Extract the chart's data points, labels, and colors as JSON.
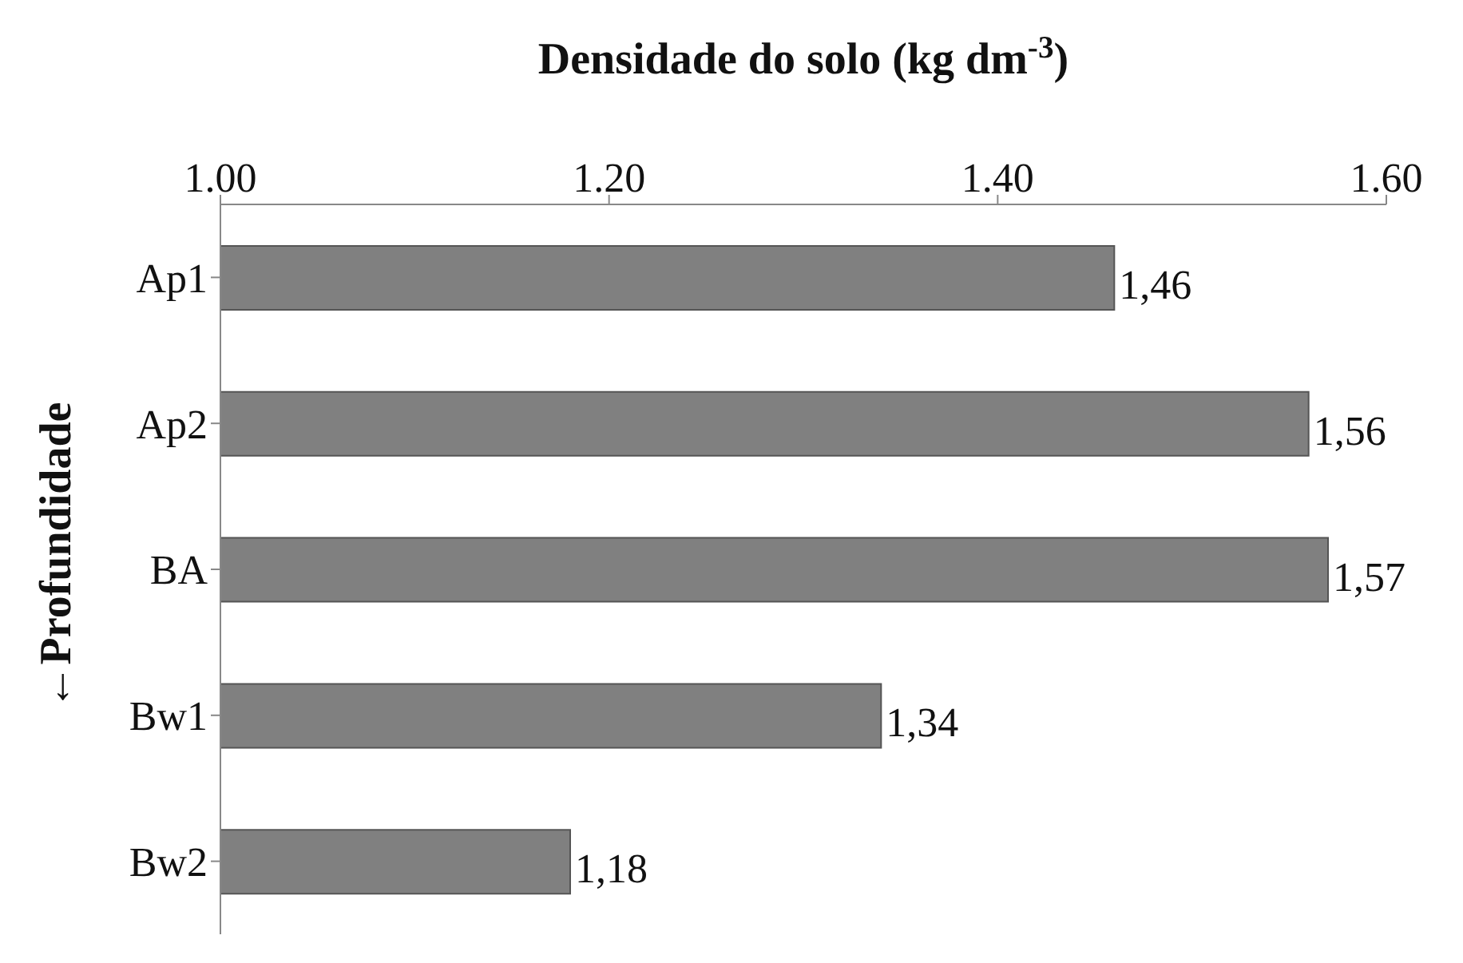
{
  "chart_data": {
    "type": "bar",
    "orientation": "horizontal",
    "xlabel": "Densidade do solo (kg dm$^{-3}$)",
    "ylabel": "←Profundidade",
    "categories": [
      "Ap1",
      "Ap2",
      "BA",
      "Bw1",
      "Bw2"
    ],
    "values": [
      1.46,
      1.56,
      1.57,
      1.34,
      1.18
    ],
    "value_labels": [
      "1,46",
      "1,56",
      "1,57",
      "1,34",
      "1,18"
    ],
    "color": "#808080",
    "xlim": [
      1.0,
      1.6
    ],
    "xticks": [
      {
        "value": 1.0,
        "label": "1.00"
      },
      {
        "value": 1.2,
        "label": "1.20"
      },
      {
        "value": 1.4,
        "label": "1.40"
      },
      {
        "value": 1.6,
        "label": "1.60"
      }
    ],
    "grid": false
  }
}
